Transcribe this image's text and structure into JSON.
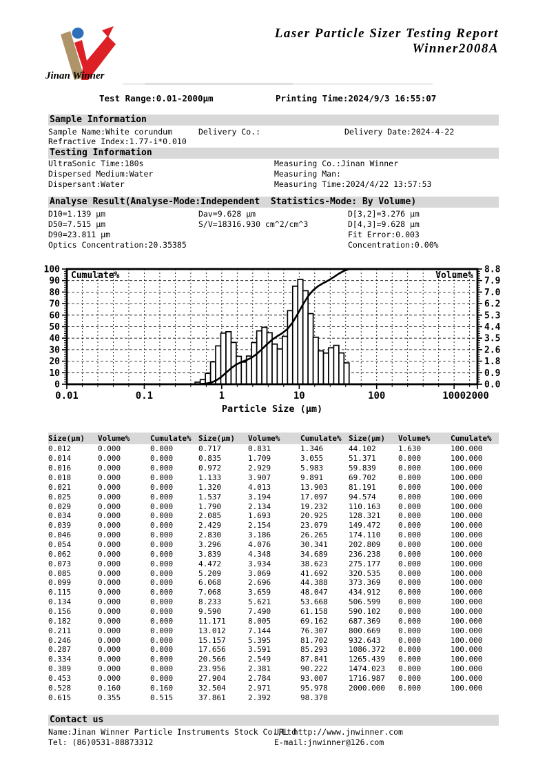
{
  "header": {
    "logo_caption": "Jinan Winner",
    "title_line1": "Laser Particle Sizer Testing Report",
    "title_line2": "Winner2008A",
    "test_range": "Test Range:0.01-2000μm",
    "printing_time": "Printing Time:2024/9/3 16:55:07",
    "logo_colors": {
      "tan": "#ae9468",
      "red": "#dd1f26",
      "blue": "#2c6fbb"
    }
  },
  "sample_information": {
    "section_title": "Sample Information",
    "fields": [
      "Sample Name:White corundum",
      "Delivery Co.:",
      "Delivery Date:2024-4-22",
      "Refractive Index:1.77-i*0.010"
    ]
  },
  "testing_information": {
    "section_title": "Testing Information",
    "left": [
      "UltraSonic Time:180s",
      "Dispersed Medium:Water",
      "Dispersant:Water"
    ],
    "right": [
      "Measuring Co.:Jinan Winner",
      "Measuring Man:",
      "Measuring Time:2024/4/22 13:57:53"
    ]
  },
  "analyse_result": {
    "section_title": "Analyse Result(Analyse-Mode:Independent  Statistics-Mode: By Volume)",
    "col1": [
      "D10=1.139 μm",
      "D50=7.515 μm",
      "D90=23.811 μm",
      "Optics Concentration:20.35385"
    ],
    "col2": [
      "Dav=9.628 μm",
      "S/V=18316.930 cm^2/cm^3"
    ],
    "col3": [
      "D[3,2]=3.276 μm",
      "D[4,3]=9.628 μm",
      "Fit Error:0.003",
      "Concentration:0.00%"
    ]
  },
  "chart_data": {
    "type": "histogram+line",
    "xlabel": "Particle Size (μm)",
    "x_scale": "log",
    "x_min": 0.01,
    "x_max": 2000,
    "x_tick_labels": [
      "0.01",
      "0.1",
      "1",
      "10",
      "100",
      "1000",
      "2000"
    ],
    "x_tick_values": [
      0.01,
      0.1,
      1,
      10,
      100,
      1000,
      2000
    ],
    "left_axis": {
      "label": "Cumulate%",
      "min": 0,
      "max": 100,
      "tick_step": 10
    },
    "right_axis": {
      "label": "Volume%",
      "max": 8.8,
      "tick_labels": [
        "8.8",
        "7.9",
        "7.0",
        "6.2",
        "5.3",
        "4.4",
        "3.5",
        "2.6",
        "1.8",
        "0.9",
        "0.0"
      ]
    },
    "grid": "dashed",
    "bar_left_boundary": 0.453,
    "sizes": [
      0.528,
      0.615,
      0.717,
      0.835,
      0.972,
      1.133,
      1.32,
      1.537,
      1.79,
      2.085,
      2.429,
      2.83,
      3.296,
      3.839,
      4.472,
      5.209,
      6.068,
      7.068,
      8.233,
      9.59,
      11.171,
      13.012,
      15.157,
      17.656,
      20.566,
      23.956,
      27.904,
      32.504,
      37.861,
      44.102
    ],
    "volume": [
      0.16,
      0.355,
      0.831,
      1.709,
      2.929,
      3.907,
      4.013,
      3.194,
      2.134,
      1.693,
      2.154,
      3.186,
      4.076,
      4.348,
      3.934,
      3.069,
      2.696,
      3.659,
      5.621,
      7.49,
      8.005,
      7.144,
      5.395,
      3.591,
      2.549,
      2.381,
      2.784,
      2.971,
      2.392,
      1.63
    ],
    "cumulate": [
      0.16,
      0.515,
      1.346,
      3.055,
      5.983,
      9.891,
      13.903,
      17.097,
      19.232,
      20.925,
      23.079,
      26.265,
      30.341,
      34.689,
      38.623,
      41.692,
      44.388,
      48.047,
      53.668,
      61.158,
      69.162,
      76.307,
      81.702,
      85.293,
      87.841,
      90.222,
      93.007,
      95.978,
      98.37,
      100.0
    ],
    "curve_flat_to": 2000
  },
  "table": {
    "headers": [
      "Size(μm)",
      "Volume%",
      "Cumulate%",
      "Size(μm)",
      "Volume%",
      "Cumulate%",
      "Size(μm)",
      "Volume%",
      "Cumulate%"
    ],
    "rows": [
      [
        "0.012",
        "0.000",
        "0.000",
        "0.717",
        "0.831",
        "1.346",
        "44.102",
        "1.630",
        "100.000"
      ],
      [
        "0.014",
        "0.000",
        "0.000",
        "0.835",
        "1.709",
        "3.055",
        "51.371",
        "0.000",
        "100.000"
      ],
      [
        "0.016",
        "0.000",
        "0.000",
        "0.972",
        "2.929",
        "5.983",
        "59.839",
        "0.000",
        "100.000"
      ],
      [
        "0.018",
        "0.000",
        "0.000",
        "1.133",
        "3.907",
        "9.891",
        "69.702",
        "0.000",
        "100.000"
      ],
      [
        "0.021",
        "0.000",
        "0.000",
        "1.320",
        "4.013",
        "13.903",
        "81.191",
        "0.000",
        "100.000"
      ],
      [
        "0.025",
        "0.000",
        "0.000",
        "1.537",
        "3.194",
        "17.097",
        "94.574",
        "0.000",
        "100.000"
      ],
      [
        "0.029",
        "0.000",
        "0.000",
        "1.790",
        "2.134",
        "19.232",
        "110.163",
        "0.000",
        "100.000"
      ],
      [
        "0.034",
        "0.000",
        "0.000",
        "2.085",
        "1.693",
        "20.925",
        "128.321",
        "0.000",
        "100.000"
      ],
      [
        "0.039",
        "0.000",
        "0.000",
        "2.429",
        "2.154",
        "23.079",
        "149.472",
        "0.000",
        "100.000"
      ],
      [
        "0.046",
        "0.000",
        "0.000",
        "2.830",
        "3.186",
        "26.265",
        "174.110",
        "0.000",
        "100.000"
      ],
      [
        "0.054",
        "0.000",
        "0.000",
        "3.296",
        "4.076",
        "30.341",
        "202.809",
        "0.000",
        "100.000"
      ],
      [
        "0.062",
        "0.000",
        "0.000",
        "3.839",
        "4.348",
        "34.689",
        "236.238",
        "0.000",
        "100.000"
      ],
      [
        "0.073",
        "0.000",
        "0.000",
        "4.472",
        "3.934",
        "38.623",
        "275.177",
        "0.000",
        "100.000"
      ],
      [
        "0.085",
        "0.000",
        "0.000",
        "5.209",
        "3.069",
        "41.692",
        "320.535",
        "0.000",
        "100.000"
      ],
      [
        "0.099",
        "0.000",
        "0.000",
        "6.068",
        "2.696",
        "44.388",
        "373.369",
        "0.000",
        "100.000"
      ],
      [
        "0.115",
        "0.000",
        "0.000",
        "7.068",
        "3.659",
        "48.047",
        "434.912",
        "0.000",
        "100.000"
      ],
      [
        "0.134",
        "0.000",
        "0.000",
        "8.233",
        "5.621",
        "53.668",
        "506.599",
        "0.000",
        "100.000"
      ],
      [
        "0.156",
        "0.000",
        "0.000",
        "9.590",
        "7.490",
        "61.158",
        "590.102",
        "0.000",
        "100.000"
      ],
      [
        "0.182",
        "0.000",
        "0.000",
        "11.171",
        "8.005",
        "69.162",
        "687.369",
        "0.000",
        "100.000"
      ],
      [
        "0.211",
        "0.000",
        "0.000",
        "13.012",
        "7.144",
        "76.307",
        "800.669",
        "0.000",
        "100.000"
      ],
      [
        "0.246",
        "0.000",
        "0.000",
        "15.157",
        "5.395",
        "81.702",
        "932.643",
        "0.000",
        "100.000"
      ],
      [
        "0.287",
        "0.000",
        "0.000",
        "17.656",
        "3.591",
        "85.293",
        "1086.372",
        "0.000",
        "100.000"
      ],
      [
        "0.334",
        "0.000",
        "0.000",
        "20.566",
        "2.549",
        "87.841",
        "1265.439",
        "0.000",
        "100.000"
      ],
      [
        "0.389",
        "0.000",
        "0.000",
        "23.956",
        "2.381",
        "90.222",
        "1474.023",
        "0.000",
        "100.000"
      ],
      [
        "0.453",
        "0.000",
        "0.000",
        "27.904",
        "2.784",
        "93.007",
        "1716.987",
        "0.000",
        "100.000"
      ],
      [
        "0.528",
        "0.160",
        "0.160",
        "32.504",
        "2.971",
        "95.978",
        "2000.000",
        "0.000",
        "100.000"
      ],
      [
        "0.615",
        "0.355",
        "0.515",
        "37.861",
        "2.392",
        "98.370",
        "",
        "",
        ""
      ]
    ]
  },
  "contact": {
    "section_title": "Contact us",
    "name": "Name:Jinan Winner Particle Instruments Stock Co.,Ltd",
    "url": "URL http://www.jnwinner.com",
    "tel": "Tel: (86)0531-88873312",
    "email": "E-mail:jnwinner@126.com"
  }
}
